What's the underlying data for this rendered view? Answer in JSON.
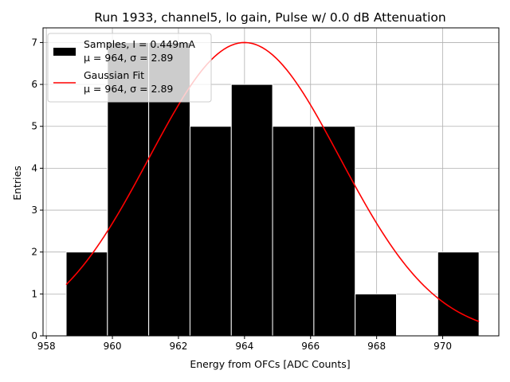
{
  "chart_data": {
    "type": "bar",
    "title": "Run 1933, channel5, lo gain, Pulse w/ 0.0 dB Attenuation",
    "xlabel": "Energy from OFCs [ADC Counts]",
    "ylabel": "Entries",
    "xlim": [
      957.9,
      971.7
    ],
    "ylim": [
      0,
      7.35
    ],
    "grid": true,
    "xticks": [
      958,
      960,
      962,
      964,
      966,
      968,
      970
    ],
    "yticks": [
      0,
      1,
      2,
      3,
      4,
      5,
      6,
      7
    ],
    "histogram": {
      "name": "Samples, I = 0.449mA",
      "stats": "μ = 964, σ = 2.89",
      "bin_edges": [
        958.6,
        959.85,
        961.1,
        962.35,
        963.6,
        964.85,
        966.1,
        967.35,
        968.6,
        969.85,
        971.1
      ],
      "counts": [
        2,
        7,
        7,
        5,
        6,
        5,
        5,
        1,
        0,
        2
      ],
      "color": "#000000"
    },
    "fit": {
      "name": "Gaussian Fit",
      "stats": "μ = 964, σ = 2.89",
      "amplitude": 7.0,
      "mu": 964.0,
      "sigma": 2.89,
      "x_range": [
        958.6,
        971.1
      ],
      "color": "#ff0000"
    },
    "legend": {
      "location": "top-left",
      "entries": [
        {
          "kind": "patch",
          "line1": "Samples, I = 0.449mA",
          "line2": "μ = 964, σ = 2.89"
        },
        {
          "kind": "line",
          "line1": "Gaussian Fit",
          "line2": "μ = 964, σ = 2.89"
        }
      ]
    }
  }
}
